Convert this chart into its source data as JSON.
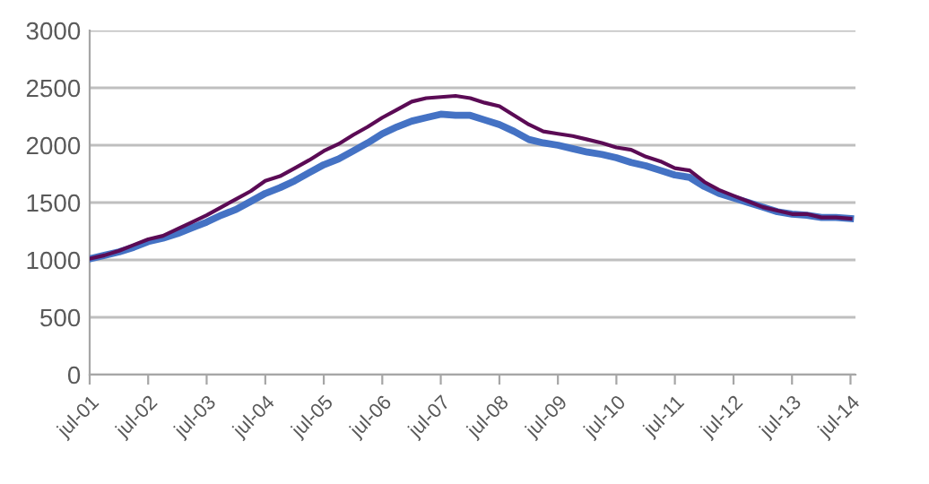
{
  "chart_data": {
    "type": "line",
    "x": [
      "2001-07",
      "2001-10",
      "2002-01",
      "2002-04",
      "2002-07",
      "2002-10",
      "2003-01",
      "2003-04",
      "2003-07",
      "2003-10",
      "2004-01",
      "2004-04",
      "2004-07",
      "2004-10",
      "2005-01",
      "2005-04",
      "2005-07",
      "2005-10",
      "2006-01",
      "2006-04",
      "2006-07",
      "2006-10",
      "2007-01",
      "2007-04",
      "2007-07",
      "2007-10",
      "2008-01",
      "2008-04",
      "2008-07",
      "2008-10",
      "2009-01",
      "2009-04",
      "2009-07",
      "2009-10",
      "2010-01",
      "2010-04",
      "2010-07",
      "2010-10",
      "2011-01",
      "2011-04",
      "2011-07",
      "2011-10",
      "2012-01",
      "2012-04",
      "2012-07",
      "2012-10",
      "2013-01",
      "2013-04",
      "2013-07",
      "2013-10",
      "2014-01",
      "2014-04",
      "2014-07"
    ],
    "series": [
      {
        "color": "#5b0b55",
        "values": [
          1010,
          1040,
          1080,
          1130,
          1180,
          1210,
          1270,
          1330,
          1390,
          1460,
          1530,
          1600,
          1690,
          1730,
          1800,
          1870,
          1950,
          2010,
          2090,
          2160,
          2240,
          2310,
          2380,
          2410,
          2420,
          2430,
          2410,
          2370,
          2340,
          2260,
          2180,
          2120,
          2100,
          2080,
          2050,
          2020,
          1980,
          1960,
          1900,
          1860,
          1800,
          1780,
          1680,
          1610,
          1560,
          1510,
          1460,
          1430,
          1400,
          1400,
          1370,
          1370,
          1360
        ]
      },
      {
        "color": "#4472c4",
        "values": [
          1010,
          1040,
          1070,
          1110,
          1160,
          1190,
          1230,
          1280,
          1330,
          1390,
          1440,
          1510,
          1580,
          1630,
          1690,
          1760,
          1830,
          1880,
          1950,
          2020,
          2100,
          2160,
          2210,
          2240,
          2270,
          2260,
          2260,
          2220,
          2180,
          2120,
          2050,
          2020,
          2000,
          1970,
          1940,
          1920,
          1890,
          1850,
          1820,
          1780,
          1740,
          1720,
          1640,
          1580,
          1540,
          1500,
          1460,
          1420,
          1400,
          1390,
          1370,
          1370,
          1360
        ]
      }
    ],
    "xlim": [
      "2001-07",
      "2014-08"
    ],
    "xticks": [
      {
        "value": "2001-07",
        "label": "jul-01"
      },
      {
        "value": "2002-07",
        "label": "jul-02"
      },
      {
        "value": "2003-07",
        "label": "jul-03"
      },
      {
        "value": "2004-07",
        "label": "jul-04"
      },
      {
        "value": "2005-07",
        "label": "jul-05"
      },
      {
        "value": "2006-07",
        "label": "jul-06"
      },
      {
        "value": "2007-07",
        "label": "jul-07"
      },
      {
        "value": "2008-07",
        "label": "jul-08"
      },
      {
        "value": "2009-07",
        "label": "jul-09"
      },
      {
        "value": "2010-07",
        "label": "jul-10"
      },
      {
        "value": "2011-07",
        "label": "jul-11"
      },
      {
        "value": "2012-07",
        "label": "jul-12"
      },
      {
        "value": "2013-07",
        "label": "jul-13"
      },
      {
        "value": "2014-07",
        "label": "jul-14"
      }
    ],
    "ylim": [
      0,
      3000
    ],
    "yticks": [
      0,
      500,
      1000,
      1500,
      2000,
      2500,
      3000
    ],
    "grid": "y",
    "marker": "none",
    "line_style": "solid",
    "legend": false
  }
}
